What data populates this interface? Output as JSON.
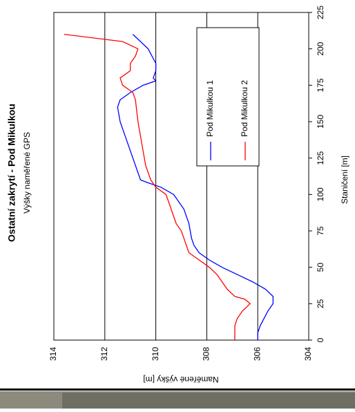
{
  "chart_data": {
    "type": "line",
    "title": "Ostatní zakrytí - Pod Mikulkou",
    "subtitle": "Výšky naměřené GPS",
    "x_label": "Staničení [m]",
    "y_label": "Naměřené výšky [m]",
    "xlim": [
      0,
      225
    ],
    "xticks": [
      0,
      25,
      50,
      75,
      100,
      125,
      150,
      175,
      200,
      225
    ],
    "ylim": [
      304,
      314
    ],
    "yticks": [
      304,
      306,
      308,
      310,
      312,
      314
    ],
    "grid": true,
    "legend": "upper-right",
    "series": [
      {
        "name": "Pod Mikulkou 1",
        "color": "#0000ff",
        "x": [
          0,
          5,
          10,
          20,
          25,
          30,
          35,
          40,
          45,
          50,
          55,
          60,
          65,
          70,
          80,
          85,
          90,
          95,
          100,
          105,
          108,
          110,
          115,
          125,
          140,
          150,
          160,
          165,
          170,
          175,
          178,
          180,
          185,
          190,
          200,
          205,
          210
        ],
        "values": [
          306.0,
          306.0,
          305.9,
          305.6,
          305.4,
          305.4,
          305.7,
          306.2,
          306.8,
          307.4,
          307.9,
          308.3,
          308.5,
          308.6,
          308.7,
          308.8,
          308.9,
          309.1,
          309.3,
          309.8,
          310.3,
          310.6,
          310.7,
          310.9,
          311.2,
          311.4,
          311.5,
          311.4,
          311.0,
          310.5,
          310.0,
          310.1,
          310.0,
          310.0,
          310.3,
          310.6,
          310.9
        ]
      },
      {
        "name": "Pod Mikulkou 2",
        "color": "#ff0000",
        "x": [
          0,
          10,
          15,
          20,
          25,
          28,
          30,
          35,
          40,
          45,
          50,
          55,
          60,
          65,
          75,
          80,
          90,
          100,
          105,
          110,
          120,
          130,
          140,
          150,
          165,
          170,
          175,
          180,
          185,
          190,
          195,
          200,
          205,
          210
        ],
        "values": [
          306.9,
          306.9,
          306.8,
          306.6,
          306.3,
          306.5,
          306.9,
          307.2,
          307.4,
          307.6,
          307.9,
          308.3,
          308.7,
          308.8,
          309.0,
          309.2,
          309.4,
          309.6,
          310.0,
          310.2,
          310.4,
          310.5,
          310.6,
          310.7,
          310.8,
          310.9,
          311.3,
          311.4,
          311.0,
          311.0,
          310.8,
          310.7,
          311.3,
          313.6
        ]
      }
    ]
  }
}
